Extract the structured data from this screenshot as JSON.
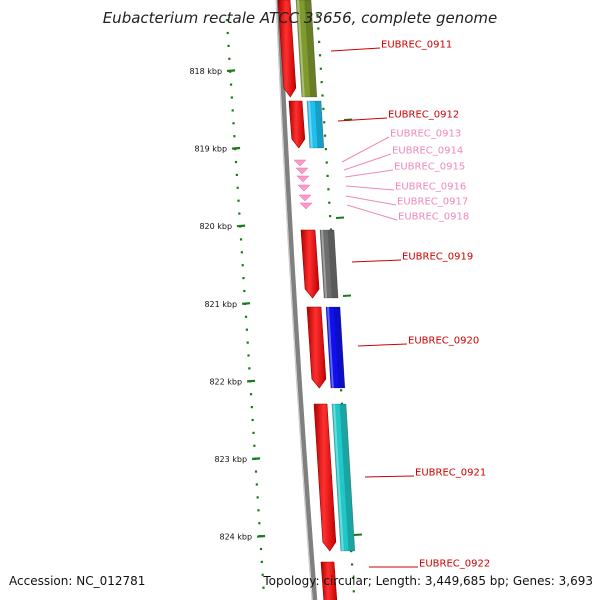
{
  "title": "Eubacterium rectale ATCC 33656, complete genome",
  "accession": "Accession: NC_012781",
  "footer": "Topology: circular; Length: 3,449,685 bp; Genes: 3,693",
  "ruler": {
    "unit": "kbp",
    "ticks": [
      {
        "position_kbp": 818,
        "label": "818 kbp"
      },
      {
        "position_kbp": 819,
        "label": "819 kbp"
      },
      {
        "position_kbp": 820,
        "label": "820 kbp"
      },
      {
        "position_kbp": 821,
        "label": "821 kbp"
      },
      {
        "position_kbp": 822,
        "label": "822 kbp"
      },
      {
        "position_kbp": 823,
        "label": "823 kbp"
      },
      {
        "position_kbp": 824,
        "label": "824 kbp"
      }
    ]
  },
  "colors": {
    "gene_red": "#ff0000",
    "label_dark": "#cc0000",
    "label_light": "#ee88bb",
    "small_gene": "#ff99cc",
    "backbone": "#808080",
    "tick_green": "#1a7a1a"
  },
  "genes": [
    {
      "id": "EUBREC_0911",
      "label": "EUBREC_0911",
      "style": "dark",
      "feature_color": "#7f9a2e"
    },
    {
      "id": "EUBREC_0912",
      "label": "EUBREC_0912",
      "style": "dark",
      "feature_color": "#1ec0f0"
    },
    {
      "id": "EUBREC_0913",
      "label": "EUBREC_0913",
      "style": "light",
      "feature_color": "#ff99cc"
    },
    {
      "id": "EUBREC_0914",
      "label": "EUBREC_0914",
      "style": "light",
      "feature_color": "#ff99cc"
    },
    {
      "id": "EUBREC_0915",
      "label": "EUBREC_0915",
      "style": "light",
      "feature_color": "#ff99cc"
    },
    {
      "id": "EUBREC_0916",
      "label": "EUBREC_0916",
      "style": "light",
      "feature_color": "#ff99cc"
    },
    {
      "id": "EUBREC_0917",
      "label": "EUBREC_0917",
      "style": "light",
      "feature_color": "#ff99cc"
    },
    {
      "id": "EUBREC_0918",
      "label": "EUBREC_0918",
      "style": "light",
      "feature_color": "#ff99cc"
    },
    {
      "id": "EUBREC_0919",
      "label": "EUBREC_0919",
      "style": "dark",
      "feature_color": "#6e6e6e"
    },
    {
      "id": "EUBREC_0920",
      "label": "EUBREC_0920",
      "style": "dark",
      "feature_color": "#1010ee"
    },
    {
      "id": "EUBREC_0921",
      "label": "EUBREC_0921",
      "style": "dark",
      "feature_color": "#20c8c8"
    },
    {
      "id": "EUBREC_0922",
      "label": "EUBREC_0922",
      "style": "dark",
      "feature_color": "#ff0000"
    }
  ]
}
